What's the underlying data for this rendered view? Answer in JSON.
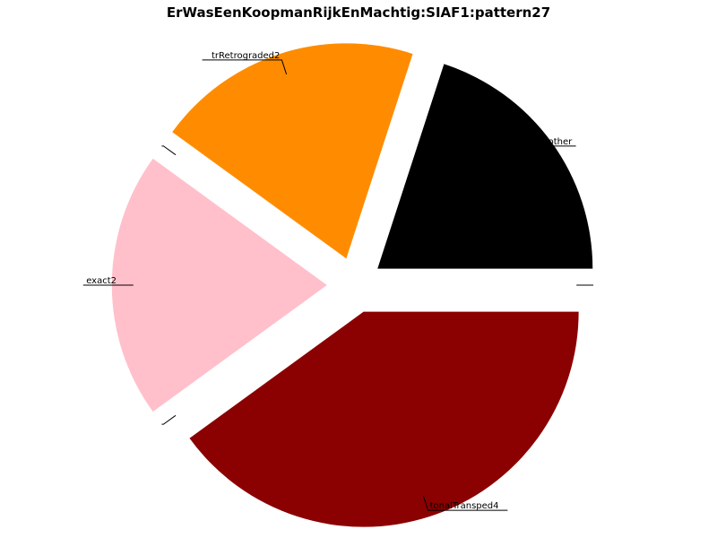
{
  "chart_data": {
    "type": "pie",
    "title": "ErWasEenKoopmanRijkEnMachtig:SIAF1:pattern27",
    "slices": [
      {
        "label": "other",
        "value": 20,
        "color": "#000000"
      },
      {
        "label": "trRetrograded2",
        "value": 20,
        "color": "#ff8c00"
      },
      {
        "label": "",
        "value": 0,
        "color": "#ffffff"
      },
      {
        "label": "exact2",
        "value": 20,
        "color": "#ffc0cb"
      },
      {
        "label": "",
        "value": 0,
        "color": "#ffffff"
      },
      {
        "label": "tonalTransped4",
        "value": 40,
        "color": "#8b0000"
      },
      {
        "label": "",
        "value": 0,
        "color": "#ffffff"
      }
    ],
    "start_angle_deg": 0,
    "direction": "counterclockwise",
    "exploded": true,
    "legend": "none"
  }
}
